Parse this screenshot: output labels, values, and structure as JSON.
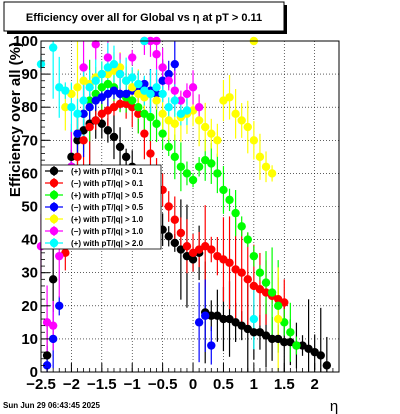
{
  "canvas_title": "Efficiency over all for Global vs    η  at pT > 0.11",
  "timestamp": "Sun Jun 29 06:43:45 2025",
  "chart_data": {
    "type": "scatter",
    "title": "Efficiency over all for Global vs    η  at pT > 0.11",
    "xlabel": "η",
    "ylabel": "Efficiency over all (%)",
    "xlim": [
      -2.5,
      2.4
    ],
    "ylim": [
      0,
      100
    ],
    "x_ticks": [
      "−2.5",
      "−2",
      "−1.5",
      "−1",
      "−0.5",
      "0",
      "0.5",
      "1",
      "1.5",
      "2"
    ],
    "x_tick_values": [
      -2.5,
      -2,
      -1.5,
      -1,
      -0.5,
      0,
      0.5,
      1,
      1.5,
      2
    ],
    "y_ticks": [
      "0",
      "10",
      "20",
      "30",
      "40",
      "50",
      "60",
      "70",
      "80",
      "90",
      "100"
    ],
    "grid": true,
    "legend_position": "center-left",
    "series": [
      {
        "name": "(+) with pT/|q| > 0.1",
        "color": "#000000",
        "marker": "circle",
        "x": [
          -2.4,
          -2.3,
          -2.2,
          -2.1,
          -2.0,
          -1.9,
          -1.8,
          -1.7,
          -1.6,
          -1.5,
          -1.4,
          -1.3,
          -1.2,
          -1.1,
          -1.0,
          -0.9,
          -0.8,
          -0.7,
          -0.6,
          -0.5,
          -0.4,
          -0.3,
          -0.2,
          -0.1,
          0.0,
          0.1,
          0.2,
          0.3,
          0.4,
          0.5,
          0.6,
          0.7,
          0.8,
          0.9,
          1.0,
          1.1,
          1.2,
          1.3,
          1.4,
          1.5,
          1.6,
          1.7,
          1.8,
          1.9,
          2.0,
          2.1,
          2.2
        ],
        "y": [
          5,
          28,
          43,
          56,
          65,
          70,
          73,
          75,
          76,
          75,
          73,
          71,
          68,
          65,
          62,
          57,
          52,
          48,
          45,
          43,
          41,
          39,
          37,
          35,
          34,
          36,
          18,
          17,
          17,
          16,
          16,
          15,
          14,
          13,
          12,
          12,
          11,
          10,
          10,
          9,
          9,
          8,
          8,
          7,
          6,
          5,
          2
        ]
      },
      {
        "name": "(−) with pT/|q| > 0.1",
        "color": "#ff0000",
        "marker": "circle",
        "x": [
          -2.1,
          -2.0,
          -1.9,
          -1.8,
          -1.7,
          -1.6,
          -1.5,
          -1.4,
          -1.3,
          -1.2,
          -1.1,
          -1.0,
          -0.9,
          -0.8,
          -0.7,
          -0.6,
          -0.5,
          -0.4,
          -0.3,
          -0.2,
          -0.1,
          0.0,
          0.1,
          0.2,
          0.3,
          0.4,
          0.5,
          0.6,
          0.7,
          0.8,
          0.9,
          1.0,
          1.1,
          1.2,
          1.3,
          1.4,
          1.5
        ],
        "y": [
          36,
          55,
          65,
          70,
          74,
          76,
          78,
          79,
          80,
          81,
          81,
          80,
          78,
          72,
          66,
          60,
          55,
          50,
          46,
          42,
          38,
          36,
          37,
          38,
          37,
          35,
          34,
          33,
          31,
          30,
          28,
          26,
          25,
          24,
          23,
          22,
          21
        ]
      },
      {
        "name": "(+) with pT/|q| > 0.5",
        "color": "#00ff00",
        "marker": "circle",
        "x": [
          -2.0,
          -1.9,
          -1.8,
          -1.7,
          -1.6,
          -1.5,
          -1.4,
          -1.3,
          -1.2,
          -1.1,
          -1.0,
          -0.9,
          -0.8,
          -0.7,
          -0.6,
          -0.5,
          -0.4,
          -0.3,
          -0.2,
          -0.1,
          0.0,
          0.1,
          0.2,
          0.3,
          0.4,
          0.5,
          0.6,
          0.7,
          0.8,
          0.9,
          1.0,
          1.1,
          1.2,
          1.3,
          1.4,
          1.5,
          1.6,
          1.7
        ],
        "y": [
          62,
          72,
          78,
          82,
          84,
          86,
          87,
          86,
          84,
          83,
          82,
          80,
          78,
          77,
          75,
          72,
          68,
          65,
          62,
          60,
          58,
          62,
          64,
          63,
          60,
          55,
          52,
          48,
          44,
          40,
          35,
          30,
          27,
          24,
          20,
          15,
          12,
          8
        ]
      },
      {
        "name": "(−) with pT/|q| > 0.5",
        "color": "#0000ff",
        "marker": "circle",
        "x": [
          -2.4,
          -2.3,
          -2.2,
          -2.1,
          -2.0,
          -1.9,
          -1.8,
          -1.7,
          -1.6,
          -1.5,
          -1.4,
          -1.3,
          -1.2,
          -1.1,
          -1.0,
          -0.9,
          -0.8,
          -0.7,
          -0.6,
          -0.5,
          -0.4,
          -0.3,
          0.1,
          0.2,
          0.3
        ],
        "y": [
          2,
          10,
          20,
          44,
          62,
          72,
          78,
          80,
          82,
          83,
          84,
          85,
          84,
          84,
          85,
          86,
          87,
          85,
          84,
          88,
          90,
          93,
          15,
          17,
          8
        ]
      },
      {
        "name": "(+) with pT/|q| > 1.0",
        "color": "#ffff00",
        "marker": "circle",
        "x": [
          -2.1,
          -2.0,
          -1.9,
          -1.8,
          -1.7,
          -1.6,
          -1.5,
          -1.4,
          -1.3,
          -1.2,
          -1.1,
          -1.0,
          -0.9,
          -0.8,
          -0.7,
          -0.6,
          -0.5,
          -0.4,
          -0.3,
          -0.2,
          -0.1,
          0.0,
          0.1,
          0.2,
          0.3,
          0.4,
          0.5,
          0.6,
          0.7,
          0.8,
          0.9,
          1.0,
          1.1,
          1.2,
          1.3,
          1.4
        ],
        "y": [
          80,
          84,
          86,
          88,
          87,
          89,
          90,
          90,
          91,
          92,
          88,
          86,
          84,
          83,
          84,
          82,
          78,
          76,
          75,
          77,
          78,
          79,
          76,
          74,
          72,
          70,
          82,
          83,
          78,
          76,
          74,
          70,
          65,
          62,
          60,
          16
        ]
      },
      {
        "name": "(−) with pT/|q| > 1.0",
        "color": "#ff00ff",
        "marker": "circle",
        "x": [
          -2.5,
          -2.4,
          -2.3,
          -2.2,
          -2.0,
          -1.8,
          -1.6,
          -1.4,
          -1.2,
          -1.0,
          -0.8,
          -0.7,
          -0.6,
          -0.5,
          -0.4,
          -0.3,
          -0.2,
          -0.1,
          0.0,
          0.1
        ],
        "y": [
          38,
          15,
          14,
          35,
          62,
          92,
          99,
          95,
          90,
          95,
          100,
          100,
          96,
          92,
          88,
          85,
          82,
          84,
          86,
          80
        ]
      },
      {
        "name": "(+) with pT/|q| > 2.0",
        "color": "#00ffff",
        "marker": "circle",
        "x": [
          -2.5,
          -2.3,
          -2.2,
          -2.1,
          -2.0,
          -1.9,
          -1.8,
          -1.7,
          -1.6,
          -1.5,
          -1.4,
          -1.3,
          -1.2,
          -1.1,
          -1.0,
          -0.9,
          -0.8,
          -0.7,
          -0.6,
          -0.5,
          -0.4,
          -0.3,
          -0.2,
          -0.1,
          1.0
        ],
        "y": [
          93,
          98,
          86,
          85,
          80,
          78,
          82,
          86,
          88,
          90,
          92,
          93,
          90,
          88,
          89,
          87,
          85,
          84,
          86,
          84,
          80,
          82,
          78,
          79,
          16
        ]
      }
    ],
    "extra_points": [
      {
        "color": "#00ffff",
        "x": -0.8,
        "y": 100
      },
      {
        "color": "#ffff00",
        "x": 1.0,
        "y": 100
      },
      {
        "color": "#ff00ff",
        "x": -0.6,
        "y": 100
      }
    ]
  }
}
